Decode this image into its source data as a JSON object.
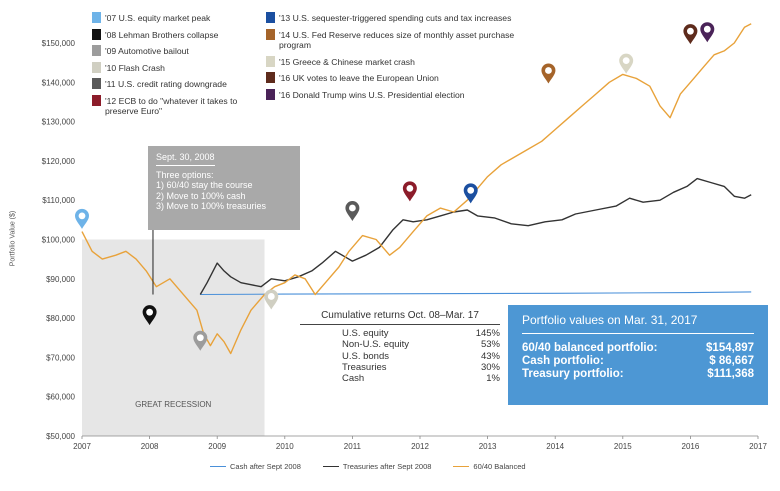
{
  "chart_data": {
    "type": "line",
    "ylabel": "Portfolio Value ($)",
    "ylim": [
      50000,
      150000
    ],
    "xlim": [
      2007,
      2017
    ],
    "x_ticks": [
      "2007",
      "2008",
      "2009",
      "2010",
      "2011",
      "2012",
      "2013",
      "2014",
      "2015",
      "2016",
      "2017"
    ],
    "y_ticks": [
      "$50,000",
      "$60,000",
      "$70,000",
      "$80,000",
      "$90,000",
      "$100,000",
      "$110,000",
      "$120,000",
      "$130,000",
      "$140,000",
      "$150,000"
    ],
    "series": [
      {
        "name": "Cash after Sept 2008",
        "color": "#4a90d9",
        "points": [
          [
            2008.75,
            86000
          ],
          [
            2010,
            86100
          ],
          [
            2012,
            86200
          ],
          [
            2014,
            86300
          ],
          [
            2016,
            86500
          ],
          [
            2016.9,
            86667
          ]
        ]
      },
      {
        "name": "Treasuries after Sept 2008",
        "color": "#333333",
        "points": [
          [
            2008.75,
            86000
          ],
          [
            2008.85,
            89000
          ],
          [
            2009.0,
            94000
          ],
          [
            2009.1,
            92000
          ],
          [
            2009.2,
            90500
          ],
          [
            2009.35,
            89000
          ],
          [
            2009.5,
            88500
          ],
          [
            2009.65,
            88000
          ],
          [
            2009.8,
            90000
          ],
          [
            2010.0,
            89500
          ],
          [
            2010.2,
            90500
          ],
          [
            2010.4,
            92000
          ],
          [
            2010.55,
            94000
          ],
          [
            2010.75,
            97000
          ],
          [
            2010.9,
            95500
          ],
          [
            2011.0,
            94500
          ],
          [
            2011.2,
            96000
          ],
          [
            2011.4,
            98000
          ],
          [
            2011.6,
            102500
          ],
          [
            2011.75,
            105000
          ],
          [
            2011.9,
            104500
          ],
          [
            2012.1,
            105000
          ],
          [
            2012.3,
            106000
          ],
          [
            2012.5,
            107000
          ],
          [
            2012.7,
            107500
          ],
          [
            2012.85,
            106000
          ],
          [
            2013.1,
            105500
          ],
          [
            2013.35,
            104000
          ],
          [
            2013.6,
            103500
          ],
          [
            2013.85,
            104500
          ],
          [
            2014.1,
            105000
          ],
          [
            2014.3,
            106500
          ],
          [
            2014.6,
            107500
          ],
          [
            2014.9,
            108500
          ],
          [
            2015.1,
            110500
          ],
          [
            2015.3,
            109500
          ],
          [
            2015.55,
            110000
          ],
          [
            2015.75,
            112000
          ],
          [
            2015.95,
            113500
          ],
          [
            2016.1,
            115500
          ],
          [
            2016.3,
            114500
          ],
          [
            2016.5,
            113500
          ],
          [
            2016.65,
            111000
          ],
          [
            2016.8,
            110500
          ],
          [
            2016.9,
            111368
          ]
        ]
      },
      {
        "name": "60/40 Balanced",
        "color": "#e8a23a",
        "points": [
          [
            2007.0,
            102000
          ],
          [
            2007.15,
            97000
          ],
          [
            2007.3,
            95000
          ],
          [
            2007.5,
            96000
          ],
          [
            2007.65,
            97000
          ],
          [
            2007.8,
            95000
          ],
          [
            2007.95,
            92000
          ],
          [
            2008.1,
            88000
          ],
          [
            2008.3,
            90000
          ],
          [
            2008.45,
            87000
          ],
          [
            2008.6,
            84000
          ],
          [
            2008.7,
            82000
          ],
          [
            2008.8,
            76000
          ],
          [
            2008.9,
            73000
          ],
          [
            2009.0,
            76000
          ],
          [
            2009.1,
            74000
          ],
          [
            2009.2,
            71000
          ],
          [
            2009.35,
            77000
          ],
          [
            2009.5,
            82000
          ],
          [
            2009.7,
            86000
          ],
          [
            2009.85,
            88000
          ],
          [
            2010.0,
            89000
          ],
          [
            2010.15,
            91000
          ],
          [
            2010.3,
            90000
          ],
          [
            2010.45,
            86000
          ],
          [
            2010.6,
            89000
          ],
          [
            2010.8,
            93000
          ],
          [
            2010.95,
            97000
          ],
          [
            2011.15,
            101000
          ],
          [
            2011.35,
            100000
          ],
          [
            2011.55,
            96000
          ],
          [
            2011.7,
            98000
          ],
          [
            2011.9,
            102000
          ],
          [
            2012.1,
            106000
          ],
          [
            2012.3,
            108000
          ],
          [
            2012.5,
            107000
          ],
          [
            2012.7,
            110000
          ],
          [
            2012.85,
            113000
          ],
          [
            2013.0,
            116000
          ],
          [
            2013.2,
            119000
          ],
          [
            2013.4,
            121000
          ],
          [
            2013.6,
            123000
          ],
          [
            2013.8,
            125000
          ],
          [
            2014.0,
            128000
          ],
          [
            2014.2,
            131000
          ],
          [
            2014.4,
            134000
          ],
          [
            2014.6,
            137000
          ],
          [
            2014.8,
            140000
          ],
          [
            2015.0,
            142000
          ],
          [
            2015.2,
            141000
          ],
          [
            2015.4,
            139000
          ],
          [
            2015.55,
            134000
          ],
          [
            2015.7,
            131000
          ],
          [
            2015.85,
            137000
          ],
          [
            2016.05,
            141000
          ],
          [
            2016.2,
            144000
          ],
          [
            2016.35,
            147000
          ],
          [
            2016.5,
            148000
          ],
          [
            2016.65,
            150000
          ],
          [
            2016.8,
            154000
          ],
          [
            2016.9,
            154897
          ]
        ]
      }
    ],
    "events": [
      {
        "label": "'07 U.S. equity market peak",
        "color": "#6eb3e8",
        "hollow": true,
        "x": 2007.0,
        "y": 105500
      },
      {
        "label": "'08 Lehman Brothers collapse",
        "color": "#111111",
        "hollow": false,
        "x": 2008.0,
        "y": 81000
      },
      {
        "label": "'09 Automotive bailout",
        "color": "#9c9c9c",
        "hollow": false,
        "x": 2008.75,
        "y": 74500
      },
      {
        "label": "'10 Flash Crash",
        "color": "#d0cfc2",
        "hollow": true,
        "x": 2009.8,
        "y": 85000
      },
      {
        "label": "'11 U.S. credit rating downgrade",
        "color": "#5a5a5a",
        "hollow": false,
        "x": 2011.0,
        "y": 107500
      },
      {
        "label": "'12 ECB to do \"whatever it takes to preserve Euro\"",
        "color": "#8c1c2a",
        "hollow": false,
        "x": 2011.85,
        "y": 112500
      },
      {
        "label": "'13 U.S. sequester-triggered spending cuts and tax increases",
        "color": "#1b4fa0",
        "hollow": false,
        "x": 2012.75,
        "y": 112000
      },
      {
        "label": "'14 U.S. Fed Reserve reduces size of monthly asset purchase program",
        "color": "#a5642a",
        "hollow": false,
        "x": 2013.9,
        "y": 142500
      },
      {
        "label": "'15 Greece & Chinese market crash",
        "color": "#d8d6c4",
        "hollow": true,
        "x": 2015.05,
        "y": 145000
      },
      {
        "label": "'16 UK votes to leave the European Union",
        "color": "#5e2b1c",
        "hollow": false,
        "x": 2016.0,
        "y": 152500
      },
      {
        "label": "'16 Donald Trump wins U.S. Presidential election",
        "color": "#4a2358",
        "hollow": false,
        "x": 2016.25,
        "y": 153000
      }
    ],
    "shaded_region": {
      "label": "GREAT RECESSION",
      "from": 2007.0,
      "to": 2009.7
    }
  },
  "callout": {
    "title": "Sept. 30, 2008",
    "lines": [
      "Three options:",
      "1) 60/40 stay the course",
      "2) Move to 100% cash",
      "3) Move to 100% treasuries"
    ]
  },
  "cumulative": {
    "title": "Cumulative returns Oct. 08–Mar. 17",
    "rows": [
      {
        "label": "U.S. equity",
        "value": "145%"
      },
      {
        "label": "Non-U.S. equity",
        "value": "53%"
      },
      {
        "label": "U.S. bonds",
        "value": "43%"
      },
      {
        "label": "Treasuries",
        "value": "30%"
      },
      {
        "label": "Cash",
        "value": "1%"
      }
    ]
  },
  "portfolio_values": {
    "title": "Portfolio values on Mar. 31, 2017",
    "rows": [
      {
        "label": "60/40 balanced portfolio:",
        "value": "$154,897"
      },
      {
        "label": "Cash portfolio:",
        "value": "$ 86,667"
      },
      {
        "label": "Treasury portfolio:",
        "value": "$111,368"
      }
    ]
  },
  "theme": {
    "shade": "#e6e6e6",
    "callout_bg": "#a9a9a9",
    "pv_bg": "#4d97d4"
  }
}
